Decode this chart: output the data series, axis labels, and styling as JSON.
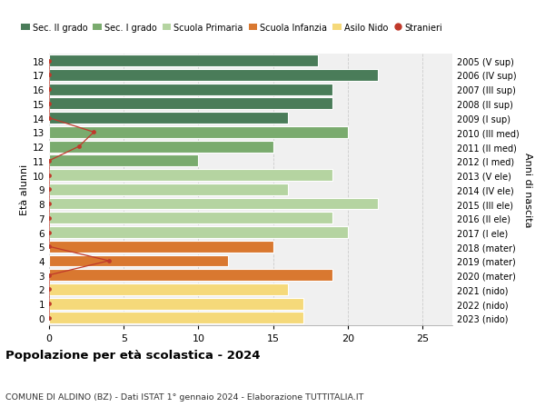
{
  "ages": [
    18,
    17,
    16,
    15,
    14,
    13,
    12,
    11,
    10,
    9,
    8,
    7,
    6,
    5,
    4,
    3,
    2,
    1,
    0
  ],
  "years": [
    "2005 (V sup)",
    "2006 (IV sup)",
    "2007 (III sup)",
    "2008 (II sup)",
    "2009 (I sup)",
    "2010 (III med)",
    "2011 (II med)",
    "2012 (I med)",
    "2013 (V ele)",
    "2014 (IV ele)",
    "2015 (III ele)",
    "2016 (II ele)",
    "2017 (I ele)",
    "2018 (mater)",
    "2019 (mater)",
    "2020 (mater)",
    "2021 (nido)",
    "2022 (nido)",
    "2023 (nido)"
  ],
  "values": [
    18,
    22,
    19,
    19,
    16,
    20,
    15,
    10,
    19,
    16,
    22,
    19,
    20,
    15,
    12,
    19,
    16,
    17,
    17
  ],
  "stranieri": [
    0,
    0,
    0,
    0,
    0,
    3,
    2,
    0,
    0,
    0,
    0,
    0,
    0,
    0,
    4,
    0,
    0,
    0,
    0
  ],
  "bar_colors": [
    "#4a7c59",
    "#4a7c59",
    "#4a7c59",
    "#4a7c59",
    "#4a7c59",
    "#7aab6e",
    "#7aab6e",
    "#7aab6e",
    "#b5d4a1",
    "#b5d4a1",
    "#b5d4a1",
    "#b5d4a1",
    "#b5d4a1",
    "#d97830",
    "#d97830",
    "#d97830",
    "#f5d97a",
    "#f5d97a",
    "#f5d97a"
  ],
  "legend_labels": [
    "Sec. II grado",
    "Sec. I grado",
    "Scuola Primaria",
    "Scuola Infanzia",
    "Asilo Nido",
    "Stranieri"
  ],
  "legend_colors": [
    "#4a7c59",
    "#7aab6e",
    "#b5d4a1",
    "#d97830",
    "#f5d97a",
    "#c0392b"
  ],
  "stranieri_color": "#c0392b",
  "title": "Popolazione per età scolastica - 2024",
  "subtitle": "COMUNE DI ALDINO (BZ) - Dati ISTAT 1° gennaio 2024 - Elaborazione TUTTITALIA.IT",
  "ylabel_left": "Età alunni",
  "ylabel_right": "Anni di nascita",
  "xlim": [
    0,
    27
  ],
  "grid_color": "#cccccc",
  "bg_color": "#ffffff",
  "bar_bg_color": "#f0f0f0"
}
